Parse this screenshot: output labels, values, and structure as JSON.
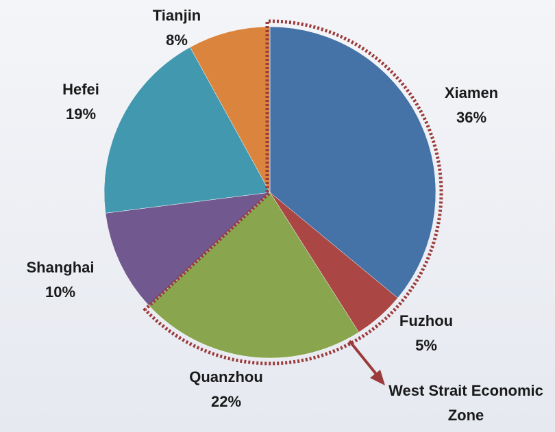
{
  "chart_data": {
    "type": "pie",
    "categories": [
      "Xiamen",
      "Fuzhou",
      "Quanzhou",
      "Shanghai",
      "Hefei",
      "Tianjin"
    ],
    "values": [
      36,
      5,
      22,
      10,
      19,
      8
    ],
    "value_labels": [
      "36%",
      "5%",
      "22%",
      "10%",
      "19%",
      "8%"
    ],
    "colors": [
      "#4572a7",
      "#aa4643",
      "#89a54e",
      "#71588f",
      "#4198af",
      "#db843d"
    ],
    "annotation": "West Strait Economic Zone"
  }
}
